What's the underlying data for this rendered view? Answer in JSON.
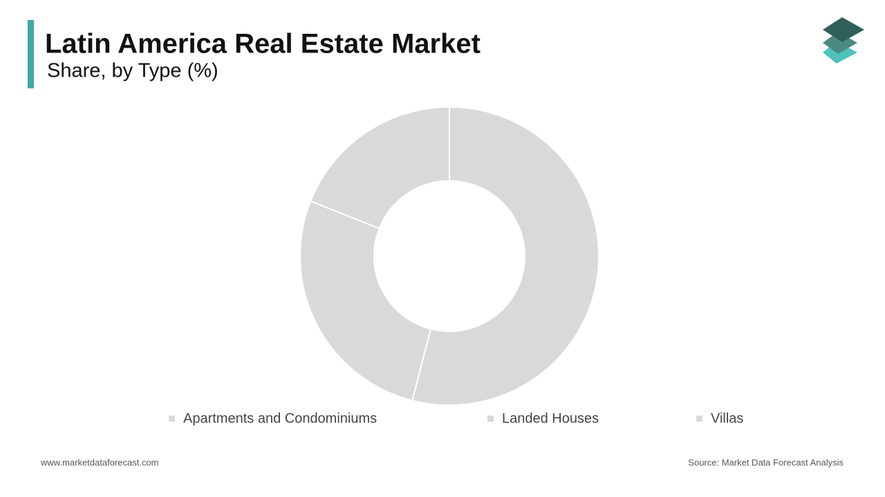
{
  "header": {
    "title": "Latin America Real Estate Market",
    "subtitle": "Share, by Type (%)"
  },
  "chart_data": {
    "type": "donut",
    "categories": [
      "Apartments and Condominiums",
      "Landed Houses",
      "Villas"
    ],
    "values": [
      54,
      27,
      19
    ],
    "colors": [
      "#d9d9d9",
      "#d9d9d9",
      "#d9d9d9"
    ],
    "legend": "bottom"
  },
  "footer": {
    "website": "www.marketdataforecast.com",
    "source": "Source: Market Data Forecast Analysis"
  }
}
